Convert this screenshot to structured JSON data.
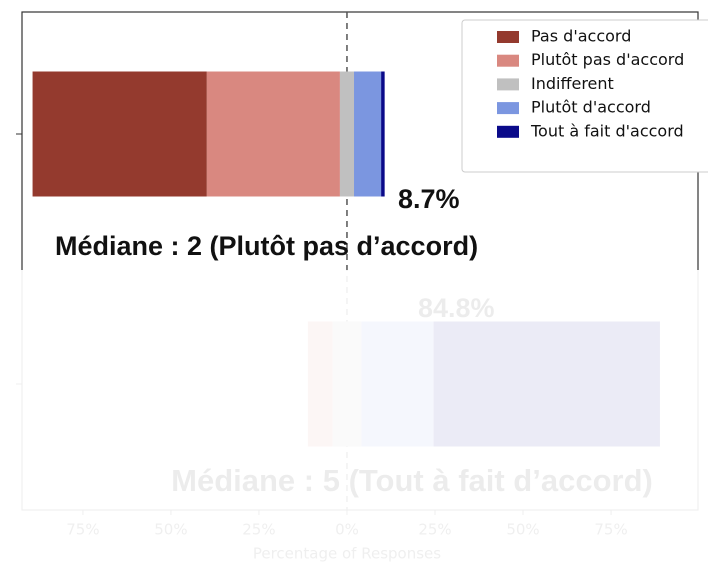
{
  "chart_data": {
    "type": "diverging_bar",
    "categories": [
      null,
      null
    ],
    "series": [
      {
        "name": "Pas d'accord",
        "color": "#943a2e",
        "values": [
          49.5,
          0
        ]
      },
      {
        "name": "Plutôt pas d'accord",
        "color": "#d98880",
        "values": [
          37.8,
          7.0
        ]
      },
      {
        "name": "Indifferent",
        "color": "#c0c0c0",
        "values": [
          4.0,
          8.2
        ]
      },
      {
        "name": "Plutôt d'accord",
        "color": "#7b96e0",
        "values": [
          7.7,
          20.5
        ]
      },
      {
        "name": "Tout à fait d'accord",
        "color": "#0a0a8a",
        "values": [
          1.0,
          64.3
        ]
      }
    ],
    "xlim": [
      -92.3,
      99.7
    ],
    "xticks": [
      {
        "value": -75,
        "label": "75%"
      },
      {
        "value": -50,
        "label": "50%"
      },
      {
        "value": -25,
        "label": "25%"
      },
      {
        "value": 0,
        "label": "0%"
      },
      {
        "value": 25,
        "label": "25%"
      },
      {
        "value": 50,
        "label": "50%"
      },
      {
        "value": 75,
        "label": "75%"
      }
    ],
    "x_label": "Percentage of Responses",
    "annotations": [
      "8.7%",
      "Médiane : 2 (Plutôt pas d’accord)",
      "84.8%",
      "Médiane : 5 (Tout à fait d’accord)"
    ],
    "legend": "upper right"
  }
}
